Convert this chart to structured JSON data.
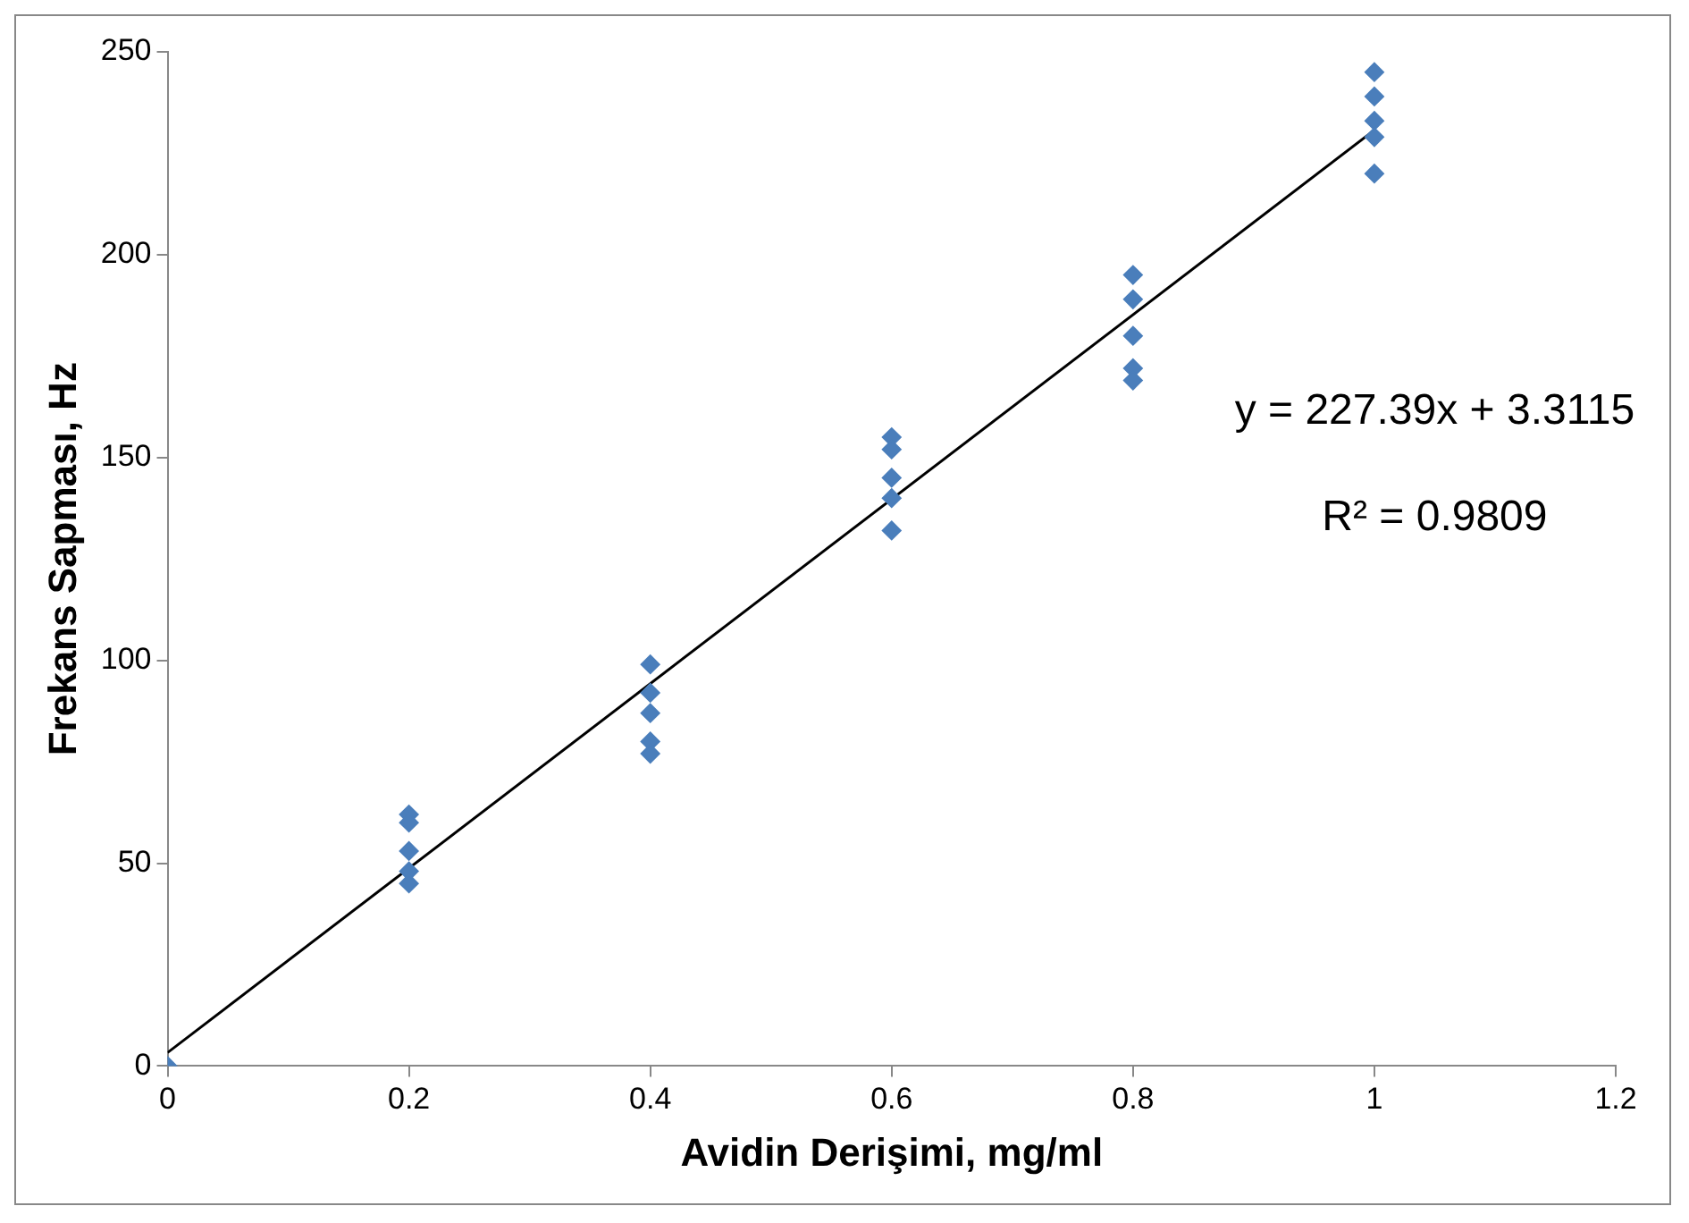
{
  "chart_data": {
    "type": "scatter",
    "xlabel": "Avidin Derişimi, mg/ml",
    "ylabel": "Frekans Sapması, Hz",
    "xlim": [
      0,
      1.2
    ],
    "xticks": [
      0,
      0.2,
      0.4,
      0.6,
      0.8,
      1,
      1.2
    ],
    "ylim": [
      0,
      250
    ],
    "yticks": [
      0,
      50,
      100,
      150,
      200,
      250
    ],
    "grid": false,
    "legend": false,
    "marker": "diamond",
    "series": [
      {
        "color": "#4a7ebb",
        "x": [
          0,
          0.2,
          0.2,
          0.2,
          0.2,
          0.2,
          0.4,
          0.4,
          0.4,
          0.4,
          0.4,
          0.6,
          0.6,
          0.6,
          0.6,
          0.6,
          0.8,
          0.8,
          0.8,
          0.8,
          0.8,
          1,
          1,
          1,
          1,
          1
        ],
        "values": [
          0,
          62,
          60,
          53,
          48,
          45,
          99,
          92,
          87,
          80,
          77,
          155,
          152,
          145,
          140,
          132,
          195,
          189,
          180,
          172,
          169,
          245,
          239,
          233,
          229,
          220
        ]
      },
      {
        "type": "line",
        "color": "#000000",
        "marker": "none",
        "x": [
          0,
          1
        ],
        "values": [
          3.3,
          230.7
        ]
      }
    ],
    "annotations": [
      "y = 227.39x + 3.3115",
      "R² = 0.9809"
    ]
  }
}
